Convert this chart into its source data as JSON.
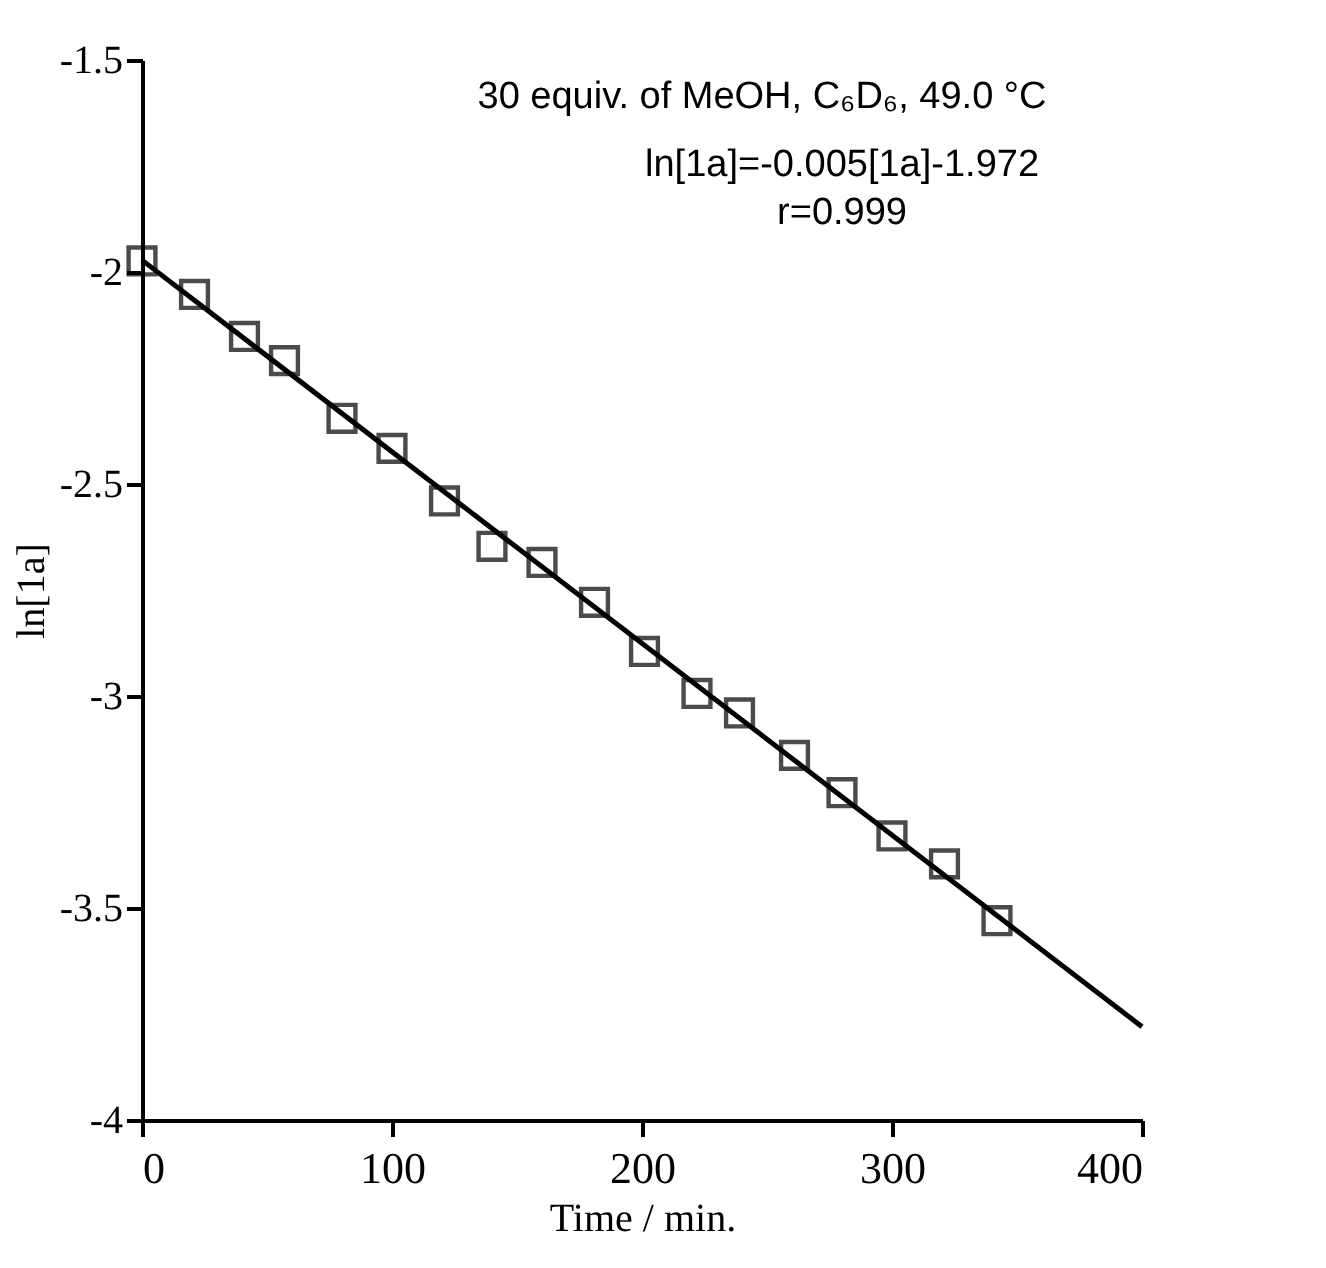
{
  "chart_data": {
    "type": "scatter",
    "xlabel": "Time  /  min.",
    "ylabel": "ln[1a]",
    "xlim": [
      0,
      400
    ],
    "ylim": [
      -4,
      -1.5
    ],
    "xticks": [
      0,
      100,
      200,
      300,
      400
    ],
    "yticks": [
      -4,
      -3.5,
      -3,
      -2.5,
      -2,
      -1.5
    ],
    "grid": false,
    "marker": "square",
    "series": [
      {
        "color": "#000000",
        "x": [
          0,
          21,
          41,
          57,
          80,
          100,
          121,
          140,
          160,
          181,
          201,
          222,
          239,
          261,
          280,
          300,
          321,
          342
        ],
        "values": [
          -1.974,
          -2.053,
          -2.152,
          -2.209,
          -2.345,
          -2.416,
          -2.54,
          -2.647,
          -2.685,
          -2.779,
          -2.895,
          -2.994,
          -3.04,
          -3.14,
          -3.228,
          -3.33,
          -3.396,
          -3.53
        ]
      },
      {
        "type": "line",
        "color": "#000000",
        "line_style": "solid",
        "marker": "none",
        "x": [
          0,
          400
        ],
        "values": [
          -1.972,
          -3.78
        ]
      }
    ],
    "annotations": [
      "30 equiv. of MeOH, C₆D₆, 49.0 °C",
      "ln[1a]=-0.005[1a]-1.972",
      "r=0.999"
    ]
  }
}
